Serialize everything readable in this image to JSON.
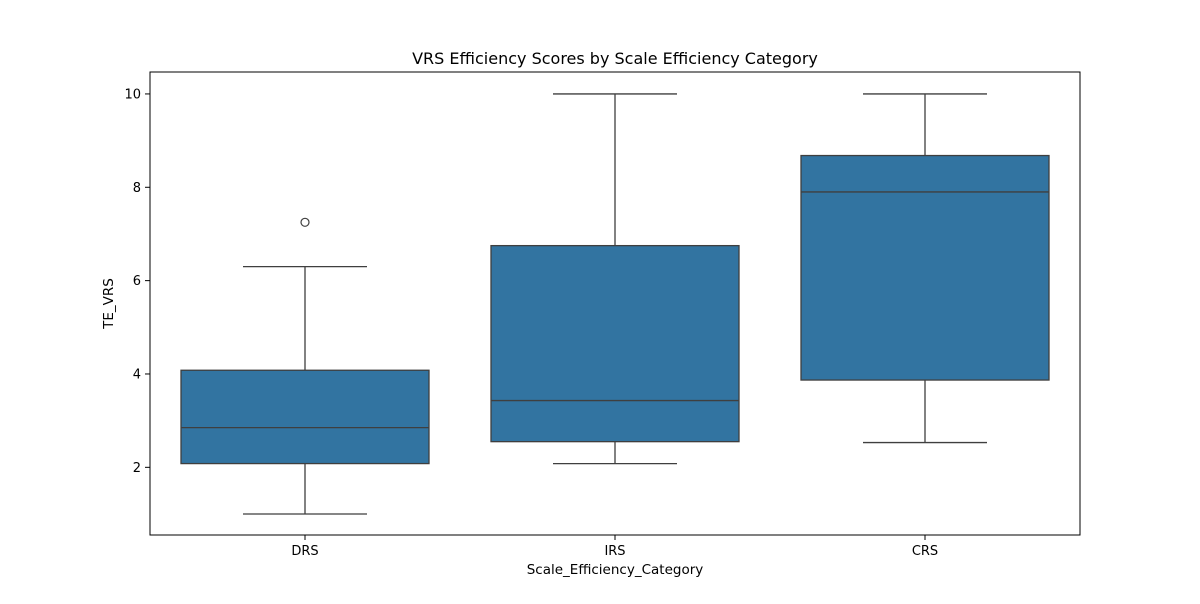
{
  "chart_data": {
    "type": "box",
    "title": "VRS Efficiency Scores by Scale Efficiency Category",
    "xlabel": "Scale_Efficiency_Category",
    "ylabel": "TE_VRS",
    "ylim": [
      0.55,
      10.47
    ],
    "yticks": [
      2,
      4,
      6,
      8,
      10
    ],
    "grid": false,
    "legend": "none",
    "color": "#3274a1",
    "line_color": "#3f3f3f",
    "categories": [
      "DRS",
      "IRS",
      "CRS"
    ],
    "boxes": [
      {
        "category": "DRS",
        "whisker_low": 1.0,
        "q1": 2.08,
        "median": 2.85,
        "q3": 4.08,
        "whisker_high": 6.3,
        "outliers": [
          7.25
        ]
      },
      {
        "category": "IRS",
        "whisker_low": 2.08,
        "q1": 2.55,
        "median": 3.43,
        "q3": 6.75,
        "whisker_high": 10.0,
        "outliers": []
      },
      {
        "category": "CRS",
        "whisker_low": 2.53,
        "q1": 3.87,
        "median": 7.9,
        "q3": 8.68,
        "whisker_high": 10.0,
        "outliers": []
      }
    ]
  }
}
